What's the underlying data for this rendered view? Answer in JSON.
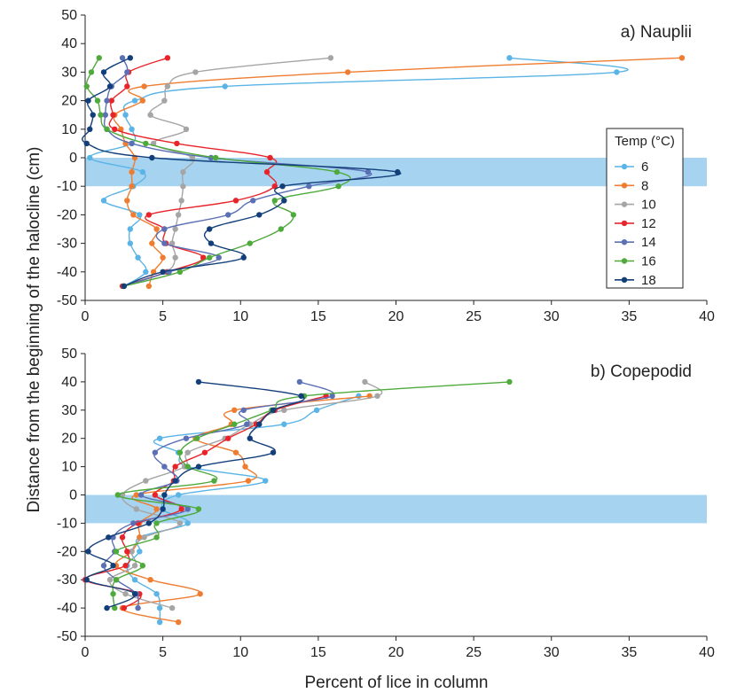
{
  "figure": {
    "ylabel": "Distance from the beginning of the halocline (cm)",
    "xlabel": "Percent of lice in column"
  },
  "legend": {
    "title": "Temp (°C)",
    "placement": "right, panel a",
    "entries": [
      {
        "label": "6",
        "color": "#5ab4e5"
      },
      {
        "label": "8",
        "color": "#ee7d31"
      },
      {
        "label": "10",
        "color": "#a5a5a5"
      },
      {
        "label": "12",
        "color": "#e8242a"
      },
      {
        "label": "14",
        "color": "#5b6fb5"
      },
      {
        "label": "16",
        "color": "#4faa3c"
      },
      {
        "label": "18",
        "color": "#123f7a"
      }
    ]
  },
  "halocline_color": "#a6d4f0",
  "chart_data": [
    {
      "type": "line",
      "title": "a)  Nauplii",
      "xlim": [
        0,
        40
      ],
      "ylim": [
        -50,
        50
      ],
      "xticks": [
        0,
        5,
        10,
        15,
        20,
        25,
        30,
        35,
        40
      ],
      "yticks": [
        -50,
        -40,
        -30,
        -20,
        -10,
        0,
        10,
        20,
        30,
        40,
        50
      ],
      "halocline_band": [
        -10,
        0
      ],
      "y": [
        35,
        30,
        25,
        20,
        15,
        10,
        5,
        0,
        -5,
        -10,
        -15,
        -20,
        -25,
        -30,
        -35,
        -40,
        -45
      ],
      "series": [
        {
          "name": "6",
          "x": [
            27.3,
            34.2,
            9.0,
            3.2,
            2.6,
            3.0,
            3.0,
            0.3,
            3.7,
            3.1,
            1.2,
            3.5,
            2.9,
            2.9,
            3.4,
            3.9,
            2.5
          ]
        },
        {
          "name": "8",
          "x": [
            38.4,
            16.9,
            3.8,
            3.7,
            1.9,
            2.3,
            2.6,
            3.2,
            3.0,
            3.0,
            2.7,
            3.1,
            4.6,
            4.3,
            5.0,
            4.4,
            4.1
          ]
        },
        {
          "name": "10",
          "x": [
            15.8,
            7.1,
            5.3,
            5.1,
            4.2,
            6.5,
            4.4,
            6.9,
            6.3,
            6.3,
            6.2,
            6.0,
            5.8,
            5.6,
            5.8,
            5.2,
            2.5
          ]
        },
        {
          "name": "12",
          "x": [
            5.3,
            2.8,
            2.7,
            1.7,
            1.8,
            1.9,
            5.9,
            11.9,
            11.7,
            12.2,
            9.7,
            4.1,
            5.1,
            5.2,
            7.6,
            5.3,
            2.4
          ]
        },
        {
          "name": "14",
          "x": [
            2.4,
            2.7,
            1.7,
            1.4,
            1.3,
            1.4,
            3.0,
            8.1,
            18.2,
            14.4,
            10.8,
            9.2,
            5.1,
            5.1,
            8.6,
            5.4,
            2.5
          ]
        },
        {
          "name": "16",
          "x": [
            0.9,
            0.4,
            0.1,
            0.8,
            1.0,
            1.4,
            3.9,
            8.4,
            16.2,
            16.3,
            12.2,
            13.4,
            12.6,
            10.6,
            8.0,
            6.1,
            2.5
          ]
        },
        {
          "name": "18",
          "x": [
            2.9,
            1.2,
            1.6,
            0.2,
            0.5,
            0.3,
            0.1,
            4.3,
            20.1,
            12.7,
            12.8,
            11.2,
            8.0,
            8.1,
            10.2,
            5.0,
            2.5
          ]
        }
      ]
    },
    {
      "type": "line",
      "title": "b)  Copepodid",
      "xlim": [
        0,
        40
      ],
      "ylim": [
        -50,
        50
      ],
      "xticks": [
        0,
        5,
        10,
        15,
        20,
        25,
        30,
        35,
        40
      ],
      "yticks": [
        -50,
        -40,
        -30,
        -20,
        -10,
        0,
        10,
        20,
        30,
        40,
        50
      ],
      "halocline_band": [
        -10,
        0
      ],
      "y": [
        40,
        35,
        30,
        25,
        20,
        15,
        10,
        5,
        0,
        -5,
        -10,
        -15,
        -20,
        -25,
        -30,
        -35,
        -40,
        -45
      ],
      "series": [
        {
          "name": "6",
          "y": [
            35,
            30,
            25,
            20,
            15,
            10,
            5,
            0,
            -5,
            -10,
            -15,
            -20,
            -25,
            -30,
            -35,
            -40,
            -45
          ],
          "x": [
            17.6,
            14.9,
            12.8,
            4.8,
            6.0,
            6.6,
            11.6,
            6.0,
            5.0,
            6.6,
            3.5,
            3.5,
            2.7,
            3.2,
            4.6,
            4.8,
            4.8
          ]
        },
        {
          "name": "8",
          "y": [
            35,
            30,
            25,
            20,
            15,
            10,
            5,
            0,
            -5,
            -10,
            -15,
            -20,
            -25,
            -30,
            -35,
            -40,
            -45
          ],
          "x": [
            18.3,
            9.6,
            9.4,
            7.1,
            9.7,
            10.3,
            10.5,
            3.3,
            4.6,
            3.5,
            3.5,
            3.0,
            2.0,
            4.2,
            7.4,
            2.4,
            6.0
          ]
        },
        {
          "name": "10",
          "y": [
            40,
            35,
            30,
            25,
            20,
            15,
            10,
            5,
            0,
            -5,
            -10,
            -15,
            -20,
            -25,
            -30,
            -35,
            -40
          ],
          "x": [
            18.0,
            18.8,
            12.8,
            10.6,
            9.0,
            6.6,
            6.4,
            3.9,
            2.4,
            3.3,
            6.1,
            3.8,
            3.0,
            3.2,
            1.6,
            2.6,
            5.6
          ]
        },
        {
          "name": "12",
          "y": [
            35,
            30,
            25,
            20,
            15,
            10,
            5,
            0,
            -5,
            -10,
            -15,
            -20,
            -25,
            -30,
            -35,
            -40
          ],
          "x": [
            15.5,
            12.2,
            11.0,
            9.2,
            7.7,
            5.8,
            5.7,
            4.5,
            6.2,
            3.4,
            2.4,
            2.7,
            2.6,
            0.0,
            3.5,
            2.5
          ]
        },
        {
          "name": "14",
          "y": [
            40,
            35,
            30,
            25,
            20,
            15,
            10,
            5,
            0,
            -5,
            -10,
            -15,
            -20,
            -25,
            -30,
            -35,
            -40
          ],
          "x": [
            13.8,
            15.9,
            10.2,
            10.4,
            6.5,
            4.5,
            5.1,
            5.9,
            3.6,
            6.6,
            3.1,
            1.8,
            1.9,
            1.2,
            2.0,
            3.3,
            3.4
          ]
        },
        {
          "name": "16",
          "y": [
            40,
            35,
            30,
            25,
            20,
            15,
            10,
            5,
            0,
            -5,
            -10,
            -15,
            -20,
            -25,
            -30,
            -35,
            -40
          ],
          "x": [
            27.3,
            14.1,
            12.0,
            9.6,
            7.2,
            6.1,
            6.6,
            8.3,
            2.1,
            7.3,
            4.6,
            4.6,
            2.0,
            3.7,
            2.0,
            1.8,
            1.9
          ]
        },
        {
          "name": "18",
          "y": [
            40,
            35,
            30,
            25,
            20,
            15,
            10,
            5,
            0,
            -5,
            -10,
            -15,
            -20,
            -25,
            -30,
            -35,
            -40
          ],
          "x": [
            7.3,
            13.9,
            12.1,
            11.2,
            10.6,
            12.1,
            7.3,
            5.8,
            5.1,
            5.0,
            4.1,
            1.5,
            0.2,
            1.8,
            0.1,
            3.2,
            1.4
          ]
        }
      ]
    }
  ]
}
